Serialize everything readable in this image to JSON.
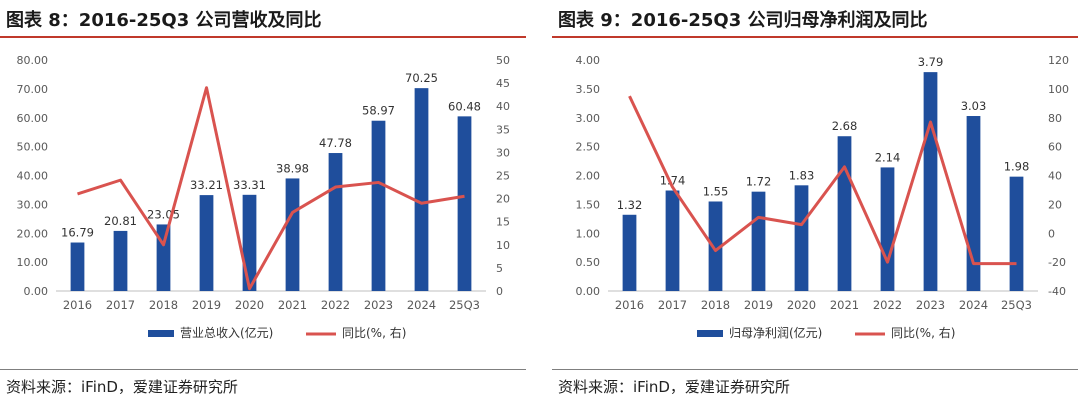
{
  "charts": [
    {
      "title": "图表 8：2016-25Q3 公司营收及同比",
      "source": "资料来源：iFinD，爱建证券研究所",
      "chart_data": {
        "type": "bar+line",
        "categories": [
          "2016",
          "2017",
          "2018",
          "2019",
          "2020",
          "2021",
          "2022",
          "2023",
          "2024",
          "25Q3"
        ],
        "series": [
          {
            "name": "营业总收入(亿元)",
            "kind": "bar",
            "axis": "left",
            "color": "#1f4e9c",
            "values": [
              16.79,
              20.81,
              23.05,
              33.21,
              33.31,
              38.98,
              47.78,
              58.97,
              70.25,
              60.48
            ],
            "labels": [
              "16.79",
              "20.81",
              "23.05",
              "33.21",
              "33.31",
              "38.98",
              "47.78",
              "58.97",
              "70.25",
              "60.48"
            ]
          },
          {
            "name": "同比(%, 右)",
            "kind": "line",
            "axis": "right",
            "color": "#d9534f",
            "values": [
              21,
              24,
              10,
              44,
              0.5,
              17,
              22.5,
              23.5,
              19,
              20.5
            ]
          }
        ],
        "left_axis": {
          "min": 0,
          "max": 80,
          "step": 10,
          "ticks": [
            "0.00",
            "10.00",
            "20.00",
            "30.00",
            "40.00",
            "50.00",
            "60.00",
            "70.00",
            "80.00"
          ]
        },
        "right_axis": {
          "min": 0,
          "max": 50,
          "step": 5,
          "ticks": [
            "0",
            "5",
            "10",
            "15",
            "20",
            "25",
            "30",
            "35",
            "40",
            "45",
            "50"
          ]
        },
        "legend": [
          "营业总收入(亿元)",
          "同比(%, 右)"
        ]
      }
    },
    {
      "title": "图表 9：2016-25Q3 公司归母净利润及同比",
      "source": "资料来源：iFinD，爱建证券研究所",
      "chart_data": {
        "type": "bar+line",
        "categories": [
          "2016",
          "2017",
          "2018",
          "2019",
          "2020",
          "2021",
          "2022",
          "2023",
          "2024",
          "25Q3"
        ],
        "series": [
          {
            "name": "归母净利润(亿元)",
            "kind": "bar",
            "axis": "left",
            "color": "#1f4e9c",
            "values": [
              1.32,
              1.74,
              1.55,
              1.72,
              1.83,
              2.68,
              2.14,
              3.79,
              3.03,
              1.98
            ],
            "labels": [
              "1.32",
              "1.74",
              "1.55",
              "1.72",
              "1.83",
              "2.68",
              "2.14",
              "3.79",
              "3.03",
              "1.98"
            ]
          },
          {
            "name": "同比(%, 右)",
            "kind": "line",
            "axis": "right",
            "color": "#d9534f",
            "values": [
              95,
              32,
              -12,
              11,
              6,
              46,
              -20,
              77,
              -21,
              -21
            ]
          }
        ],
        "left_axis": {
          "min": 0,
          "max": 4,
          "step": 0.5,
          "ticks": [
            "0.00",
            "0.50",
            "1.00",
            "1.50",
            "2.00",
            "2.50",
            "3.00",
            "3.50",
            "4.00"
          ]
        },
        "right_axis": {
          "min": -40,
          "max": 120,
          "step": 20,
          "ticks": [
            "-40",
            "-20",
            "0",
            "20",
            "40",
            "60",
            "80",
            "100",
            "120"
          ]
        },
        "legend": [
          "归母净利润(亿元)",
          "同比(%, 右)"
        ]
      }
    }
  ]
}
